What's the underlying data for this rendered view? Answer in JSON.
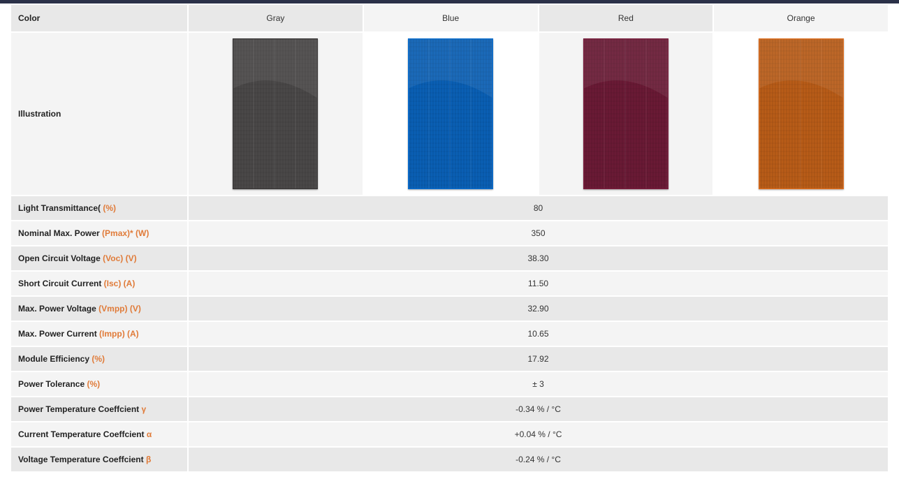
{
  "header": {
    "label": "Color",
    "columns": [
      "Gray",
      "Blue",
      "Red",
      "Orange"
    ]
  },
  "illustration": {
    "label": "Illustration",
    "panels": [
      {
        "name": "gray-panel",
        "color": "#4a4848",
        "edge": "#3a3838"
      },
      {
        "name": "blue-panel",
        "color": "#0a5fb4",
        "edge": "#0b6fd0"
      },
      {
        "name": "red-panel",
        "color": "#6a1a35",
        "edge": "#7a1e3e"
      },
      {
        "name": "orange-panel",
        "color": "#b85c18",
        "edge": "#e07020"
      }
    ]
  },
  "rows": [
    {
      "name": "light-transmittance",
      "label": "Light Transmittance( ",
      "unit": "(%)",
      "value": "80"
    },
    {
      "name": "nominal-max-power",
      "label": "Nominal Max. Power ",
      "unit": "(Pmax)* (W)",
      "value": "350"
    },
    {
      "name": "open-circuit-voltage",
      "label": "Open Circuit Voltage ",
      "unit": "(Voc) (V)",
      "value": "38.30"
    },
    {
      "name": "short-circuit-current",
      "label": "Short Circuit Current ",
      "unit": "(Isc) (A)",
      "value": "11.50"
    },
    {
      "name": "max-power-voltage",
      "label": "Max. Power Voltage ",
      "unit": "(Vmpp) (V)",
      "value": "32.90"
    },
    {
      "name": "max-power-current",
      "label": "Max. Power Current ",
      "unit": "(Impp) (A)",
      "value": "10.65"
    },
    {
      "name": "module-efficiency",
      "label": "Module Efficiency ",
      "unit": "(%)",
      "value": "17.92"
    },
    {
      "name": "power-tolerance",
      "label": "Power Tolerance ",
      "unit": "(%)",
      "value": "± 3"
    },
    {
      "name": "power-temperature-coefficient",
      "label": "Power Temperature Coeffcient ",
      "unit": "γ",
      "value": "-0.34 % / °C"
    },
    {
      "name": "current-temperature-coefficient",
      "label": "Current Temperature Coeffcient ",
      "unit": "α",
      "value": "+0.04 % / °C"
    },
    {
      "name": "voltage-temperature-coefficient",
      "label": "Voltage Temperature Coeffcient ",
      "unit": "β",
      "value": "-0.24 % / °C"
    }
  ],
  "colors": {
    "topbar": "#2b3148",
    "highlight": "#e07b39",
    "row_shade": "#e8e8e8",
    "row_light": "#f4f4f4"
  }
}
